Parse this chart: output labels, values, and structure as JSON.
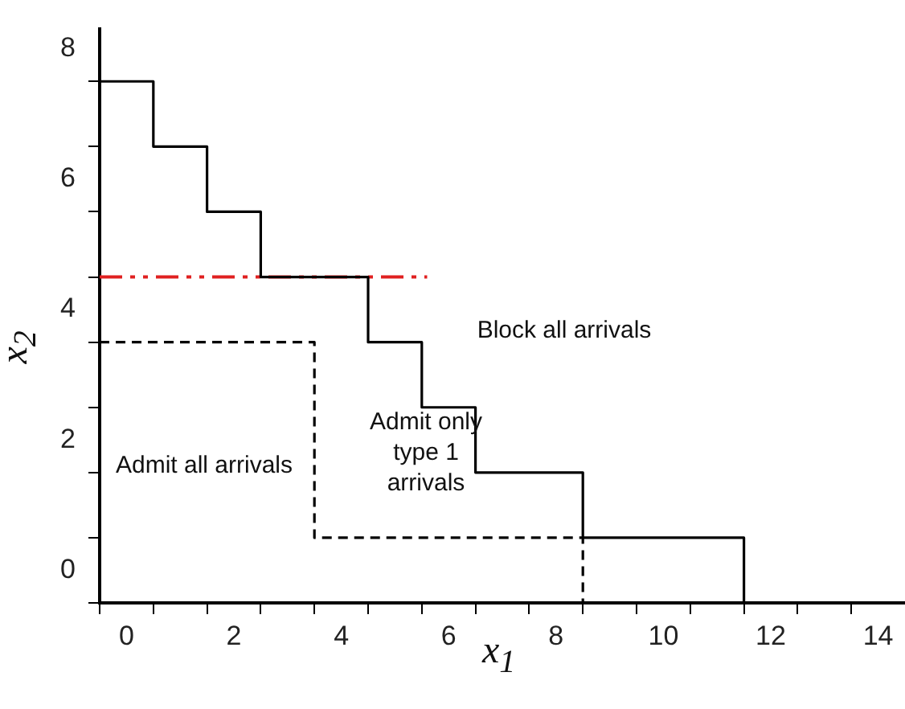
{
  "chart_data": {
    "type": "step",
    "xlabel": "x$_{1}$",
    "ylabel": "x$_{2}$",
    "xlim": [
      -0.5,
      14.5
    ],
    "ylim": [
      -0.5,
      8.3
    ],
    "xticks": [
      {
        "value": -0.5,
        "label": null
      },
      0,
      {
        "value": 0.5,
        "label": null
      },
      {
        "value": 1.5,
        "label": null
      },
      2,
      {
        "value": 2.5,
        "label": null
      },
      {
        "value": 3.5,
        "label": null
      },
      4,
      {
        "value": 4.5,
        "label": null
      },
      {
        "value": 5.5,
        "label": null
      },
      6,
      {
        "value": 6.5,
        "label": null
      },
      {
        "value": 7.5,
        "label": null
      },
      8,
      {
        "value": 8.5,
        "label": null
      },
      {
        "value": 9.5,
        "label": null
      },
      10,
      {
        "value": 10.5,
        "label": null
      },
      {
        "value": 11.5,
        "label": null
      },
      12,
      {
        "value": 12.5,
        "label": null
      },
      {
        "value": 13.5,
        "label": null
      },
      14
    ],
    "yticks": [
      {
        "value": -0.5,
        "label": null
      },
      0,
      {
        "value": 0.5,
        "label": null
      },
      {
        "value": 1.5,
        "label": null
      },
      2,
      {
        "value": 2.5,
        "label": null
      },
      {
        "value": 3.5,
        "label": null
      },
      4,
      {
        "value": 4.5,
        "label": null
      },
      {
        "value": 5.5,
        "label": null
      },
      6,
      {
        "value": 6.5,
        "label": null
      },
      {
        "value": 7.5,
        "label": null
      },
      8
    ],
    "series": [
      {
        "color": "#000000",
        "line_style": "solid",
        "x": [
          -0.5,
          0.5,
          1.5,
          2.5,
          4.5,
          5.5,
          6.5,
          8.5,
          11.5
        ],
        "values": [
          7.5,
          6.5,
          5.5,
          4.5,
          3.5,
          2.5,
          1.5,
          0.5,
          -0.5
        ]
      },
      {
        "color": "#000000",
        "line_style": "dashed",
        "x": [
          -0.5,
          3.5,
          8.5
        ],
        "values": [
          3.5,
          0.5,
          -0.5
        ]
      },
      {
        "type": "line",
        "color": "#e02020",
        "line_style": "dashed",
        "x": [
          -0.5,
          5.6
        ],
        "values": [
          4.5,
          4.5
        ]
      }
    ],
    "annotations": [
      "Admit all arrivals",
      "Admit only type 1 arrivals",
      "Block all arrivals"
    ],
    "grid": false,
    "legend": false,
    "marker": "none"
  }
}
